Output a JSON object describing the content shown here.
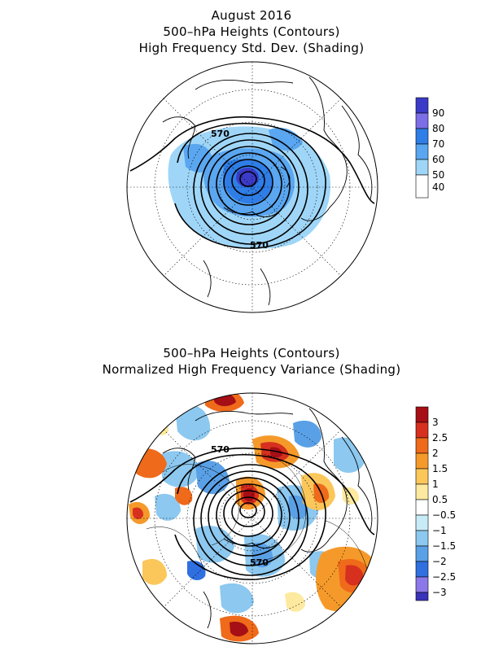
{
  "panel1": {
    "title_lines": [
      "August 2016",
      "500–hPa Heights (Contours)",
      "High Frequency Std. Dev. (Shading)"
    ],
    "contour_labels": [
      "570",
      "570"
    ],
    "colorbar": {
      "labels": [
        "90",
        "80",
        "70",
        "60",
        "50",
        "40"
      ],
      "colors": [
        "#3b3bc8",
        "#7b6ee6",
        "#2f7de6",
        "#5aa6f0",
        "#9fd6f8",
        "#ffffff"
      ]
    }
  },
  "panel2": {
    "title_lines": [
      "500–hPa Heights (Contours)",
      "Normalized High Frequency Variance (Shading)"
    ],
    "contour_labels": [
      "570",
      "570"
    ],
    "colorbar": {
      "labels": [
        "3",
        "2.5",
        "2",
        "1.5",
        "1",
        "0.5",
        "−0.5",
        "−1",
        "−1.5",
        "−2",
        "−2.5",
        "−3"
      ],
      "colors": [
        "#a50f15",
        "#d7301f",
        "#ef6a1a",
        "#f59a2a",
        "#fbc75a",
        "#fdeaa0",
        "#ffffff",
        "#c8ecf7",
        "#8cc8ef",
        "#5aa0e6",
        "#2f6fe0",
        "#8c78e8",
        "#3a32b8"
      ]
    }
  },
  "colors": {
    "blue_light": "#9fd6f8",
    "blue_mid": "#5aa6f0",
    "blue_dark": "#2f7de6",
    "orange": "#ef6a1a",
    "red": "#a50f15",
    "yellow": "#fbc75a"
  }
}
